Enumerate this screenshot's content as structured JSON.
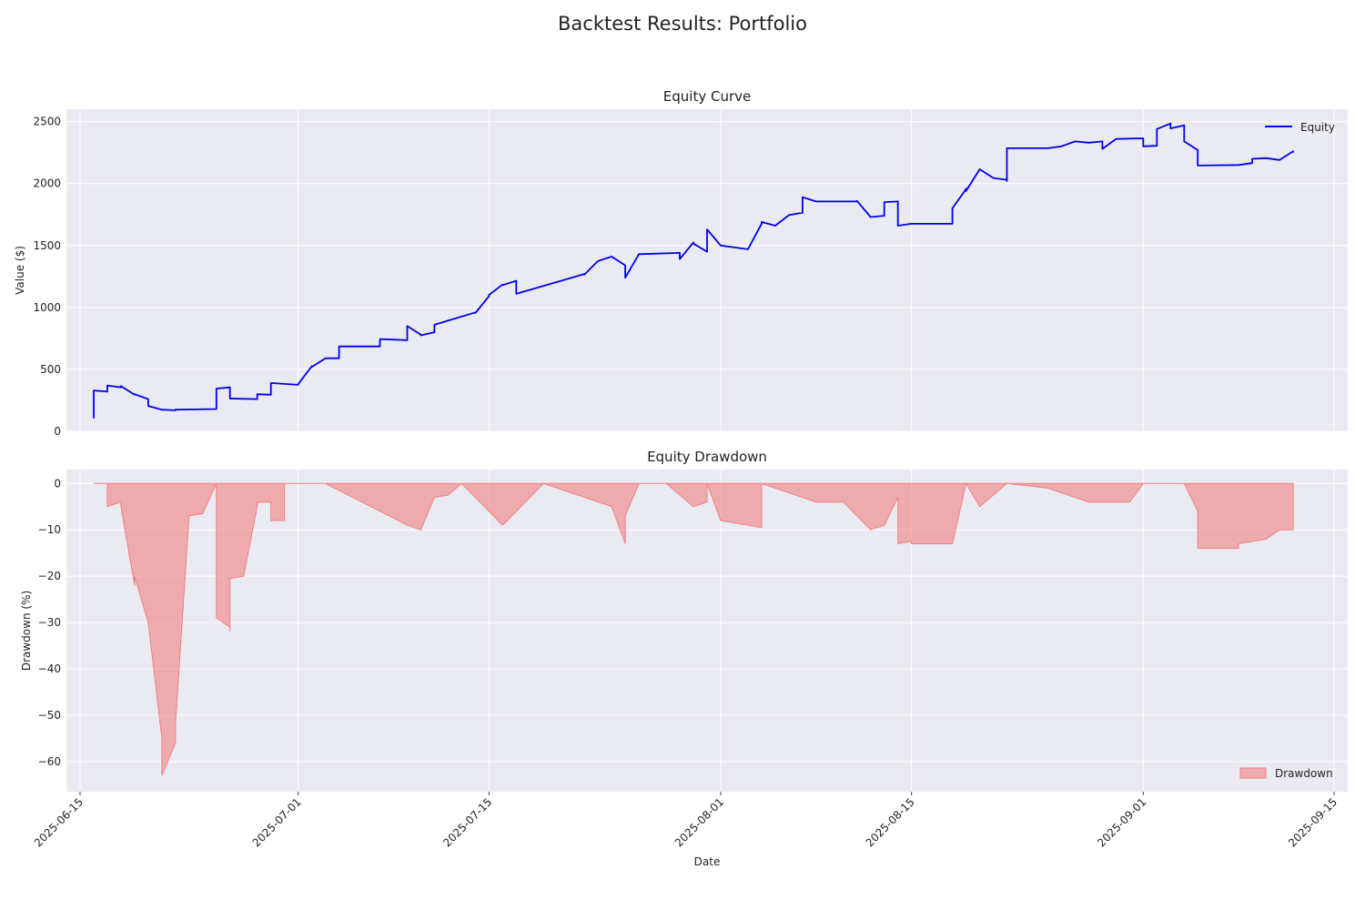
{
  "figure_title": "Backtest Results: Portfolio",
  "colors": {
    "equity_line": "#0000ee",
    "drawdown_fill": "#f08080",
    "plot_bg": "#eaeaf2",
    "grid": "#ffffff"
  },
  "chart_data": [
    {
      "type": "line",
      "title": "Equity Curve",
      "ylabel": "Value ($)",
      "xlabel": "",
      "x_axis": "date",
      "xlim": [
        "2025-06-14",
        "2025-09-16"
      ],
      "ylim": [
        0,
        2600
      ],
      "yticks": [
        0,
        500,
        1000,
        1500,
        2000,
        2500
      ],
      "grid": true,
      "legend_position": "top-right",
      "series": [
        {
          "name": "Equity",
          "x": [
            "2025-06-16",
            "2025-06-16",
            "2025-06-17",
            "2025-06-17",
            "2025-06-18",
            "2025-06-18",
            "2025-06-19",
            "2025-06-19",
            "2025-06-20",
            "2025-06-20",
            "2025-06-21",
            "2025-06-22",
            "2025-06-22",
            "2025-06-25",
            "2025-06-25",
            "2025-06-25",
            "2025-06-26",
            "2025-06-26",
            "2025-06-28",
            "2025-06-28",
            "2025-06-29",
            "2025-06-29",
            "2025-07-01",
            "2025-07-01",
            "2025-07-02",
            "2025-07-02",
            "2025-07-03",
            "2025-07-04",
            "2025-07-04",
            "2025-07-07",
            "2025-07-07",
            "2025-07-08",
            "2025-07-09",
            "2025-07-09",
            "2025-07-10",
            "2025-07-10",
            "2025-07-11",
            "2025-07-11",
            "2025-07-14",
            "2025-07-14",
            "2025-07-15",
            "2025-07-15",
            "2025-07-16",
            "2025-07-16",
            "2025-07-17",
            "2025-07-17",
            "2025-07-22",
            "2025-07-22",
            "2025-07-23",
            "2025-07-23",
            "2025-07-24",
            "2025-07-25",
            "2025-07-25",
            "2025-07-26",
            "2025-07-29",
            "2025-07-29",
            "2025-07-30",
            "2025-07-30",
            "2025-07-31",
            "2025-07-31",
            "2025-08-01",
            "2025-08-03",
            "2025-08-04",
            "2025-08-04",
            "2025-08-05",
            "2025-08-06",
            "2025-08-07",
            "2025-08-07",
            "2025-08-08",
            "2025-08-11",
            "2025-08-11",
            "2025-08-12",
            "2025-08-13",
            "2025-08-13",
            "2025-08-14",
            "2025-08-14",
            "2025-08-15",
            "2025-08-18",
            "2025-08-18",
            "2025-08-19",
            "2025-08-19",
            "2025-08-19",
            "2025-08-20",
            "2025-08-21",
            "2025-08-22",
            "2025-08-22",
            "2025-08-22",
            "2025-08-25",
            "2025-08-26",
            "2025-08-27",
            "2025-08-28",
            "2025-08-29",
            "2025-08-29",
            "2025-08-30",
            "2025-09-01",
            "2025-09-01",
            "2025-09-02",
            "2025-09-02",
            "2025-09-03",
            "2025-09-03",
            "2025-09-04",
            "2025-09-04",
            "2025-09-05",
            "2025-09-05",
            "2025-09-08",
            "2025-09-09",
            "2025-09-09",
            "2025-09-10",
            "2025-09-11",
            "2025-09-12",
            "2025-09-12"
          ],
          "y": [
            105,
            330,
            320,
            370,
            355,
            365,
            295,
            300,
            260,
            205,
            175,
            170,
            175,
            180,
            215,
            345,
            355,
            265,
            260,
            300,
            295,
            390,
            375,
            380,
            525,
            520,
            590,
            590,
            685,
            685,
            745,
            740,
            735,
            850,
            780,
            775,
            800,
            860,
            960,
            955,
            1090,
            1100,
            1185,
            1180,
            1215,
            1110,
            1270,
            1265,
            1375,
            1375,
            1410,
            1340,
            1240,
            1430,
            1440,
            1390,
            1525,
            1515,
            1450,
            1630,
            1500,
            1470,
            1675,
            1690,
            1660,
            1745,
            1765,
            1890,
            1855,
            1855,
            1860,
            1730,
            1740,
            1850,
            1855,
            1660,
            1675,
            1675,
            1800,
            1955,
            1960,
            1940,
            2115,
            2045,
            2030,
            2020,
            2285,
            2285,
            2300,
            2340,
            2330,
            2340,
            2280,
            2360,
            2365,
            2300,
            2305,
            2440,
            2485,
            2445,
            2470,
            2340,
            2270,
            2145,
            2150,
            2165,
            2200,
            2205,
            2190,
            2260,
            2250
          ]
        }
      ]
    },
    {
      "type": "area",
      "title": "Equity Drawdown",
      "ylabel": "Drawdown (%)",
      "xlabel": "Date",
      "x_axis": "date",
      "xlim": [
        "2025-06-14",
        "2025-09-16"
      ],
      "ylim": [
        -66.5,
        3
      ],
      "yticks": [
        0,
        -10,
        -20,
        -30,
        -40,
        -50,
        -60
      ],
      "xticks": [
        "2025-06-15",
        "2025-07-01",
        "2025-07-15",
        "2025-08-01",
        "2025-08-15",
        "2025-09-01",
        "2025-09-15"
      ],
      "grid": true,
      "legend_position": "bottom-right",
      "series": [
        {
          "name": "Drawdown",
          "x": [
            "2025-06-16",
            "2025-06-17",
            "2025-06-17",
            "2025-06-18",
            "2025-06-18",
            "2025-06-19",
            "2025-06-19",
            "2025-06-19",
            "2025-06-20",
            "2025-06-21",
            "2025-06-21",
            "2025-06-22",
            "2025-06-22",
            "2025-06-22",
            "2025-06-23",
            "2025-06-24",
            "2025-06-25",
            "2025-06-25",
            "2025-06-26",
            "2025-06-26",
            "2025-06-26",
            "2025-06-27",
            "2025-06-28",
            "2025-06-28",
            "2025-06-29",
            "2025-06-29",
            "2025-06-30",
            "2025-06-30",
            "2025-07-01",
            "2025-07-03",
            "2025-07-09",
            "2025-07-10",
            "2025-07-11",
            "2025-07-12",
            "2025-07-13",
            "2025-07-16",
            "2025-07-19",
            "2025-07-24",
            "2025-07-25",
            "2025-07-25",
            "2025-07-26",
            "2025-07-28",
            "2025-07-30",
            "2025-07-31",
            "2025-07-31",
            "2025-08-01",
            "2025-08-01",
            "2025-08-04",
            "2025-08-04",
            "2025-08-08",
            "2025-08-10",
            "2025-08-12",
            "2025-08-13",
            "2025-08-14",
            "2025-08-14",
            "2025-08-15",
            "2025-08-15",
            "2025-08-18",
            "2025-08-19",
            "2025-08-20",
            "2025-08-22",
            "2025-08-25",
            "2025-08-28",
            "2025-08-31",
            "2025-09-01",
            "2025-09-04",
            "2025-09-05",
            "2025-09-05",
            "2025-09-08",
            "2025-09-08",
            "2025-09-10",
            "2025-09-11",
            "2025-09-12",
            "2025-09-12",
            "2025-09-12"
          ],
          "y": [
            0,
            0,
            -5,
            -4,
            -5,
            -22,
            -20,
            -20,
            -30,
            -55,
            -63,
            -56,
            -55,
            -52,
            -7,
            -6.5,
            0,
            -29,
            -31,
            -32,
            -20.5,
            -20,
            -5,
            -4,
            -4,
            -8,
            -8,
            0,
            0,
            0,
            -9,
            -10,
            -3,
            -2.5,
            0,
            -9,
            0,
            -5,
            -13,
            -7,
            0,
            0,
            -5,
            -4,
            0,
            -8,
            -8,
            -9.5,
            0,
            -4,
            -4,
            -10,
            -9,
            -3,
            -13,
            -12.5,
            -13,
            -13,
            0,
            -5,
            0,
            -1,
            -4,
            -4,
            0,
            0,
            -6,
            -14,
            -14,
            -13,
            -12,
            -10,
            -10,
            -10,
            0
          ],
          "label_hint": ""
        }
      ]
    }
  ]
}
